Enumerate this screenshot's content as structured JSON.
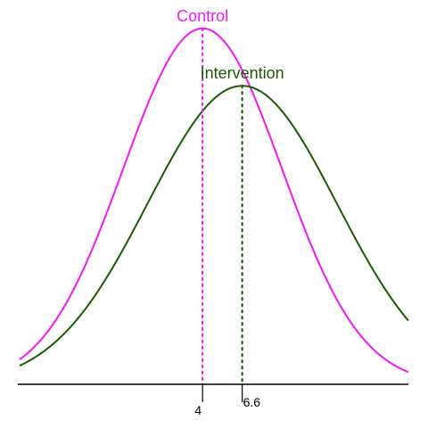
{
  "chart_data": {
    "type": "line",
    "title": "",
    "xlabel": "",
    "ylabel": "",
    "grid": false,
    "legend": "none",
    "axes_visible": {
      "y": false,
      "x": "baseline-only"
    },
    "x_range": [
      -8,
      17.5
    ],
    "y_range": [
      0,
      0.079
    ],
    "series": [
      {
        "name": "Control",
        "color": "#f218f2",
        "distribution": "normal",
        "mean": 4,
        "sd": 5.2,
        "peak_density": 0.0767
      },
      {
        "name": "Intervention",
        "color": "#1c5a00",
        "distribution": "normal",
        "mean": 6.6,
        "sd": 6.2,
        "peak_density": 0.0643
      }
    ],
    "mean_markers": [
      {
        "series": "Control",
        "x": 4,
        "label": "4"
      },
      {
        "series": "Intervention",
        "x": 6.6,
        "label": "6.6"
      }
    ]
  }
}
